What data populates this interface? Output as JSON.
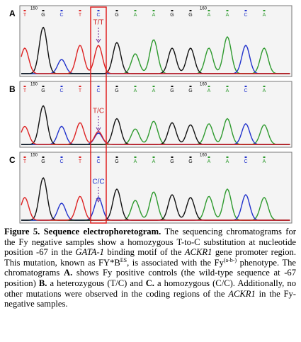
{
  "panels": [
    {
      "label": "A",
      "marker_left": 150,
      "marker_right": 160,
      "bases": [
        "T",
        "G",
        "C",
        "T",
        "C",
        "G",
        "A",
        "A",
        "G",
        "G",
        "A",
        "A",
        "C",
        "A"
      ],
      "annotation": "T/T"
    },
    {
      "label": "B",
      "marker_left": 150,
      "marker_right": 160,
      "bases": [
        "T",
        "G",
        "C",
        "T",
        "C",
        "G",
        "A",
        "A",
        "G",
        "G",
        "A",
        "A",
        "C",
        "A"
      ],
      "annotation": "T/C"
    },
    {
      "label": "C",
      "marker_left": 150,
      "marker_right": 160,
      "bases": [
        "T",
        "G",
        "C",
        "T",
        "C",
        "G",
        "A",
        "A",
        "G",
        "G",
        "A",
        "A",
        "C",
        "A"
      ],
      "annotation": "C/C"
    }
  ],
  "caption": {
    "runs": [
      "Figure 5. Sequence electrophoretogram.",
      " The sequencing chromatograms for the Fy negative samples show a homozygous T-to-C substitution at nucleotide position -67 in the ",
      "GATA-1",
      " binding motif of the ",
      "ACKR1",
      " gene promoter region. This mutation, known as FY*B",
      "ES",
      ", is associated with the Fy",
      "(a-b-)",
      " phenotype. The chromatograms ",
      "A.",
      " shows Fy positive controls (the wild-type sequence at -67 position) ",
      "B.",
      " a heterozygous (T/C) and ",
      "C.",
      " a homozygous (C/C). Additionally, no other mutations were observed in the coding regions of the ",
      "ACKR1",
      " in the Fy-negative samples."
    ]
  }
}
